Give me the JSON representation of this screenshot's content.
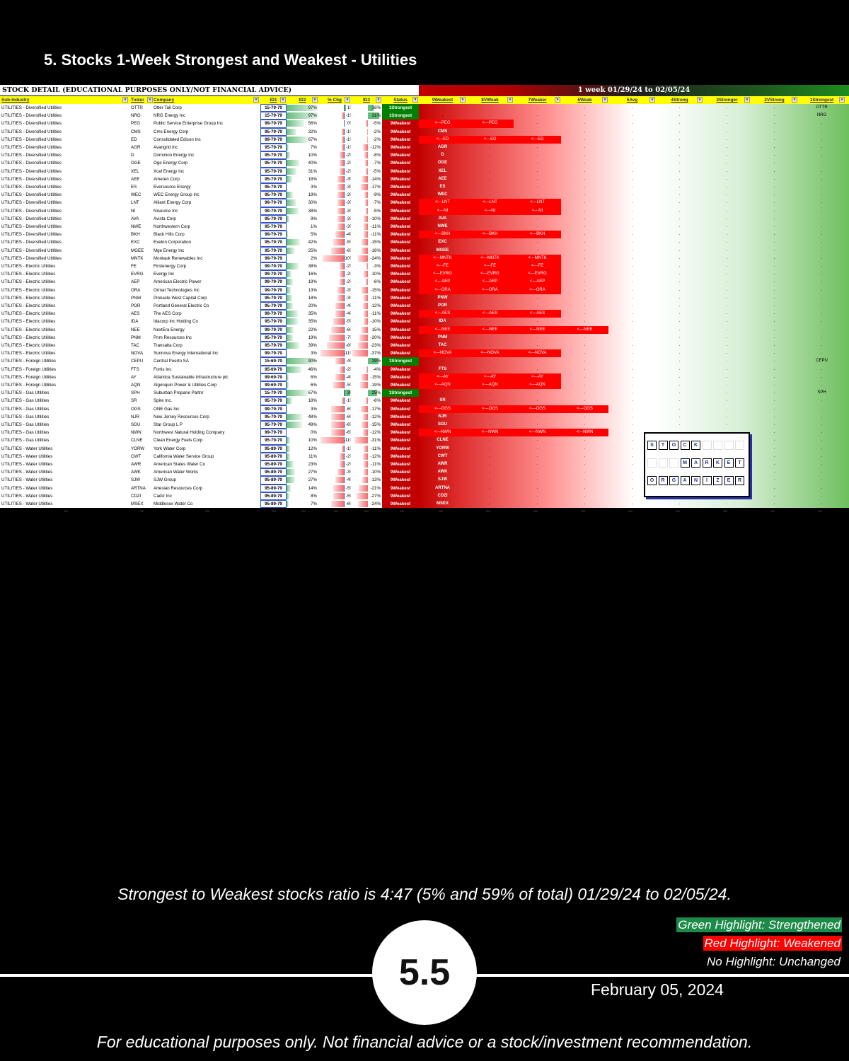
{
  "page": {
    "title": "5. Stocks 1-Week Strongest and Weakest - Utilities",
    "ratio_text": "Strongest to Weakest stocks ratio is 4:47 (5% and 59% of total) 01/29/24 to 02/05/24.",
    "legend": {
      "green": "Green Highlight: Strengthened",
      "red": "Red Highlight: Weakened",
      "none": "No Highlight: Unchanged"
    },
    "page_number": "5.5",
    "date": "February 05, 2024",
    "disclaimer": "For educational purposes only. Not financial advice or a stock/investment recommendation."
  },
  "colors": {
    "strong": "#008000",
    "weak": "#c00000",
    "highlight": "#ff0000",
    "header_yellow": "#ffff00"
  },
  "sheet": {
    "left_header": "STOCK DETAIL (EDUCATIONAL PURPOSES ONLY/NOT FINANCIAL ADVICE)",
    "right_header": "1 week 01/29/24 to 02/05/24",
    "columns": [
      "Sub-Industry",
      "Ticker",
      "Company",
      "ID1",
      "ID2",
      "% Chg",
      "ID3",
      "Status"
    ],
    "strength_columns": [
      "9Weakest",
      "8VWeak",
      "7Weaker",
      "6Weak",
      "5Avg",
      "4Strong",
      "3Stronger",
      "2VStrong",
      "1Strongest"
    ],
    "dot": ".",
    "tail_mark": "---",
    "rows": [
      [
        "UTILITIES - Diversified Utilities",
        "OTTR",
        "Otter Tail Corp",
        "15-79-79",
        97,
        1,
        16,
        "1Strongest",
        9,
        ""
      ],
      [
        "UTILITIES - Diversified Utilities",
        "NRG",
        "NRG Energy Inc",
        "15-79-79",
        97,
        -1,
        31,
        "1Strongest",
        9,
        ""
      ],
      [
        "UTILITIES - Diversified Utilities",
        "PEG",
        "Public Service Enterprise Group Inc",
        "99-79-79",
        56,
        0,
        -5,
        "9Weakest",
        1,
        "<---PEG",
        2
      ],
      [
        "UTILITIES - Diversified Utilities",
        "CMS",
        "Cms Energy Corp",
        "95-79-79",
        32,
        -1,
        -2,
        "9Weakest",
        1,
        ""
      ],
      [
        "UTILITIES - Diversified Utilities",
        "ED",
        "Consolidated Edison Inc",
        "99-79-79",
        67,
        -1,
        -2,
        "9Weakest",
        1,
        "<---ED",
        3
      ],
      [
        "UTILITIES - Diversified Utilities",
        "AGR",
        "Avangrid Inc",
        "95-79-79",
        7,
        -1,
        -12,
        "9Weakest",
        1,
        ""
      ],
      [
        "UTILITIES - Diversified Utilities",
        "D",
        "Dominion Energy Inc",
        "95-79-79",
        10,
        -2,
        -8,
        "9Weakest",
        1,
        ""
      ],
      [
        "UTILITIES - Diversified Utilities",
        "OGE",
        "Oge Energy Corp",
        "95-79-79",
        40,
        -2,
        -7,
        "9Weakest",
        1,
        ""
      ],
      [
        "UTILITIES - Diversified Utilities",
        "XEL",
        "Xcel Energy Inc",
        "95-79-79",
        31,
        -2,
        -5,
        "9Weakest",
        1,
        ""
      ],
      [
        "UTILITIES - Diversified Utilities",
        "AEE",
        "Ameren Corp",
        "95-79-79",
        18,
        -3,
        -14,
        "9Weakest",
        1,
        ""
      ],
      [
        "UTILITIES - Diversified Utilities",
        "ES",
        "Eversource Energy",
        "95-79-79",
        3,
        -3,
        -17,
        "9Weakest",
        1,
        ""
      ],
      [
        "UTILITIES - Diversified Utilities",
        "WEC",
        "WEC Energy Group Inc",
        "95-79-79",
        19,
        -3,
        -9,
        "9Weakest",
        1,
        ""
      ],
      [
        "UTILITIES - Diversified Utilities",
        "LNT",
        "Alliant Energy Corp",
        "99-79-79",
        30,
        -3,
        -7,
        "9Weakest",
        1,
        "<---LNT",
        3
      ],
      [
        "UTILITIES - Diversified Utilities",
        "NI",
        "Nisource Inc",
        "99-79-79",
        38,
        -3,
        -5,
        "9Weakest",
        1,
        "<---NI",
        3
      ],
      [
        "UTILITIES - Diversified Utilities",
        "AVA",
        "Avista Corp",
        "95-79-79",
        9,
        -3,
        -10,
        "9Weakest",
        1,
        ""
      ],
      [
        "UTILITIES - Diversified Utilities",
        "NWE",
        "Northwestern Corp",
        "95-79-79",
        1,
        -3,
        -11,
        "9Weakest",
        1,
        ""
      ],
      [
        "UTILITIES - Diversified Utilities",
        "BKH",
        "Black Hills Corp",
        "99-79-79",
        5,
        -4,
        -11,
        "9Weakest",
        1,
        "<---BKH",
        3
      ],
      [
        "UTILITIES - Diversified Utilities",
        "EXC",
        "Exelon Corporation",
        "95-79-79",
        42,
        -5,
        -15,
        "9Weakest",
        1,
        ""
      ],
      [
        "UTILITIES - Diversified Utilities",
        "MGEE",
        "Mge Energy Inc",
        "95-79-79",
        25,
        -6,
        -16,
        "9Weakest",
        1,
        ""
      ],
      [
        "UTILITIES - Diversified Utilities",
        "MNTK",
        "Montauk Renewables Inc",
        "99-79-79",
        2,
        -10,
        -24,
        "9Weakest",
        1,
        "<---MNTK",
        3
      ],
      [
        "UTILITIES - Electric Utilities",
        "FE",
        "Firstenergy Corp",
        "99-79-79",
        38,
        -2,
        -3,
        "9Weakest",
        1,
        "<---FE",
        3
      ],
      [
        "UTILITIES - Electric Utilities",
        "EVRG",
        "Evergy Inc",
        "99-79-79",
        16,
        -2,
        -10,
        "9Weakest",
        1,
        "<---EVRG",
        3
      ],
      [
        "UTILITIES - Electric Utilities",
        "AEP",
        "American Electric Power",
        "99-79-79",
        19,
        -2,
        -6,
        "9Weakest",
        1,
        "<---AEP",
        3
      ],
      [
        "UTILITIES - Electric Utilities",
        "ORA",
        "Ormat Technologies Inc",
        "99-79-79",
        13,
        -3,
        -15,
        "9Weakest",
        1,
        "<---ORA",
        3
      ],
      [
        "UTILITIES - Electric Utilities",
        "PNW",
        "Pinnacle West Capital Corp",
        "95-79-79",
        18,
        -3,
        -11,
        "9Weakest",
        1,
        ""
      ],
      [
        "UTILITIES - Electric Utilities",
        "POR",
        "Portland General Electric Co",
        "95-79-79",
        20,
        -4,
        -12,
        "9Weakest",
        1,
        ""
      ],
      [
        "UTILITIES - Electric Utilities",
        "AES",
        "The AES Corp",
        "99-79-79",
        35,
        -4,
        -11,
        "9Weakest",
        1,
        "<---AES",
        3
      ],
      [
        "UTILITIES - Electric Utilities",
        "IDA",
        "Idacorp Inc Holding Co",
        "95-79-79",
        35,
        -5,
        -10,
        "9Weakest",
        1,
        ""
      ],
      [
        "UTILITIES - Electric Utilities",
        "NEE",
        "NextEra Energy",
        "99-79-79",
        22,
        -6,
        -15,
        "9Weakest",
        1,
        "<---NEE",
        4
      ],
      [
        "UTILITIES - Electric Utilities",
        "PNM",
        "Pnm Resources Inc",
        "95-79-79",
        19,
        -7,
        -20,
        "9Weakest",
        1,
        ""
      ],
      [
        "UTILITIES - Electric Utilities",
        "TAC",
        "Transalta Corp",
        "95-79-79",
        39,
        -8,
        -23,
        "9Weakest",
        1,
        ""
      ],
      [
        "UTILITIES - Electric Utilities",
        "NOVA",
        "Sunnova Energy International Inc",
        "99-79-79",
        3,
        -11,
        -37,
        "9Weakest",
        1,
        "<---NOVA",
        3
      ],
      [
        "UTILITIES - Foreign Utilities",
        "CEPU",
        "Central Puerto SA",
        "15-69-79",
        90,
        -4,
        29,
        "1Strongest",
        9,
        ""
      ],
      [
        "UTILITIES - Foreign Utilities",
        "FTS",
        "Fortis Inc",
        "95-69-79",
        46,
        -2,
        -4,
        "9Weakest",
        1,
        ""
      ],
      [
        "UTILITIES - Foreign Utilities",
        "AY",
        "Atlantica Sustainable Infrastructure plc",
        "99-69-79",
        6,
        -4,
        -15,
        "9Weakest",
        1,
        "<---AY",
        3
      ],
      [
        "UTILITIES - Foreign Utilities",
        "AQN",
        "Algonquin Power & Utilities Corp",
        "99-69-79",
        6,
        -5,
        -19,
        "9Weakest",
        1,
        "<---AQN",
        3
      ],
      [
        "UTILITIES - Gas Utilities",
        "SPH",
        "Suburban Propane Partnr",
        "15-79-79",
        67,
        3,
        25,
        "1Strongest",
        9,
        ""
      ],
      [
        "UTILITIES - Gas Utilities",
        "SR",
        "Spire Inc.",
        "95-79-79",
        18,
        -1,
        -6,
        "9Weakest",
        1,
        ""
      ],
      [
        "UTILITIES - Gas Utilities",
        "OGS",
        "ONE Gas Inc",
        "99-79-79",
        3,
        -6,
        -17,
        "9Weakest",
        1,
        "<---OGS",
        4
      ],
      [
        "UTILITIES - Gas Utilities",
        "NJR",
        "New Jersey Resources Corp",
        "95-79-79",
        48,
        -6,
        -12,
        "9Weakest",
        1,
        ""
      ],
      [
        "UTILITIES - Gas Utilities",
        "SGU",
        "Star Group L P",
        "95-79-79",
        49,
        -6,
        -15,
        "9Weakest",
        1,
        ""
      ],
      [
        "UTILITIES - Gas Utilities",
        "NWN",
        "Northwest Natural Holding Company",
        "99-79-79",
        0,
        -6,
        -12,
        "9Weakest",
        1,
        "<---NWN",
        4
      ],
      [
        "UTILITIES - Gas Utilities",
        "CLNE",
        "Clean Energy Fuels Corp",
        "95-79-79",
        10,
        -11,
        -31,
        "9Weakest",
        1,
        ""
      ],
      [
        "UTILITIES - Water Utilities",
        "YORW",
        "York Water Corp",
        "95-89-79",
        12,
        -1,
        -11,
        "9Weakest",
        1,
        ""
      ],
      [
        "UTILITIES - Water Utilities",
        "CWT",
        "California Water Service Group",
        "95-89-79",
        11,
        -2,
        -12,
        "9Weakest",
        1,
        ""
      ],
      [
        "UTILITIES - Water Utilities",
        "AWR",
        "American States Water Co",
        "95-89-79",
        23,
        -2,
        -11,
        "9Weakest",
        1,
        ""
      ],
      [
        "UTILITIES - Water Utilities",
        "AWK",
        "American Water Works",
        "95-89-79",
        27,
        -3,
        -10,
        "9Weakest",
        1,
        ""
      ],
      [
        "UTILITIES - Water Utilities",
        "SJW",
        "SJW Group",
        "95-89-79",
        27,
        -4,
        -13,
        "9Weakest",
        1,
        ""
      ],
      [
        "UTILITIES - Water Utilities",
        "ARTNA",
        "Artesian Resources Corp",
        "95-89-79",
        14,
        -5,
        -21,
        "9Weakest",
        1,
        ""
      ],
      [
        "UTILITIES - Water Utilities",
        "CDZI",
        "Cadiz Inc",
        "95-89-79",
        8,
        -5,
        -27,
        "9Weakest",
        1,
        ""
      ],
      [
        "UTILITIES - Water Utilities",
        "MSEX",
        "Middlesex Water Co",
        "95-89-79",
        7,
        -6,
        -24,
        "9Weakest",
        1,
        ""
      ]
    ],
    "logo": {
      "word1": [
        "S",
        "T",
        "O",
        "C",
        "K"
      ],
      "word2": [
        "M",
        "A",
        "R",
        "K",
        "E",
        "T"
      ],
      "word3": [
        "O",
        "R",
        "G",
        "A",
        "N",
        "I",
        "Z",
        "E",
        "R"
      ]
    }
  }
}
